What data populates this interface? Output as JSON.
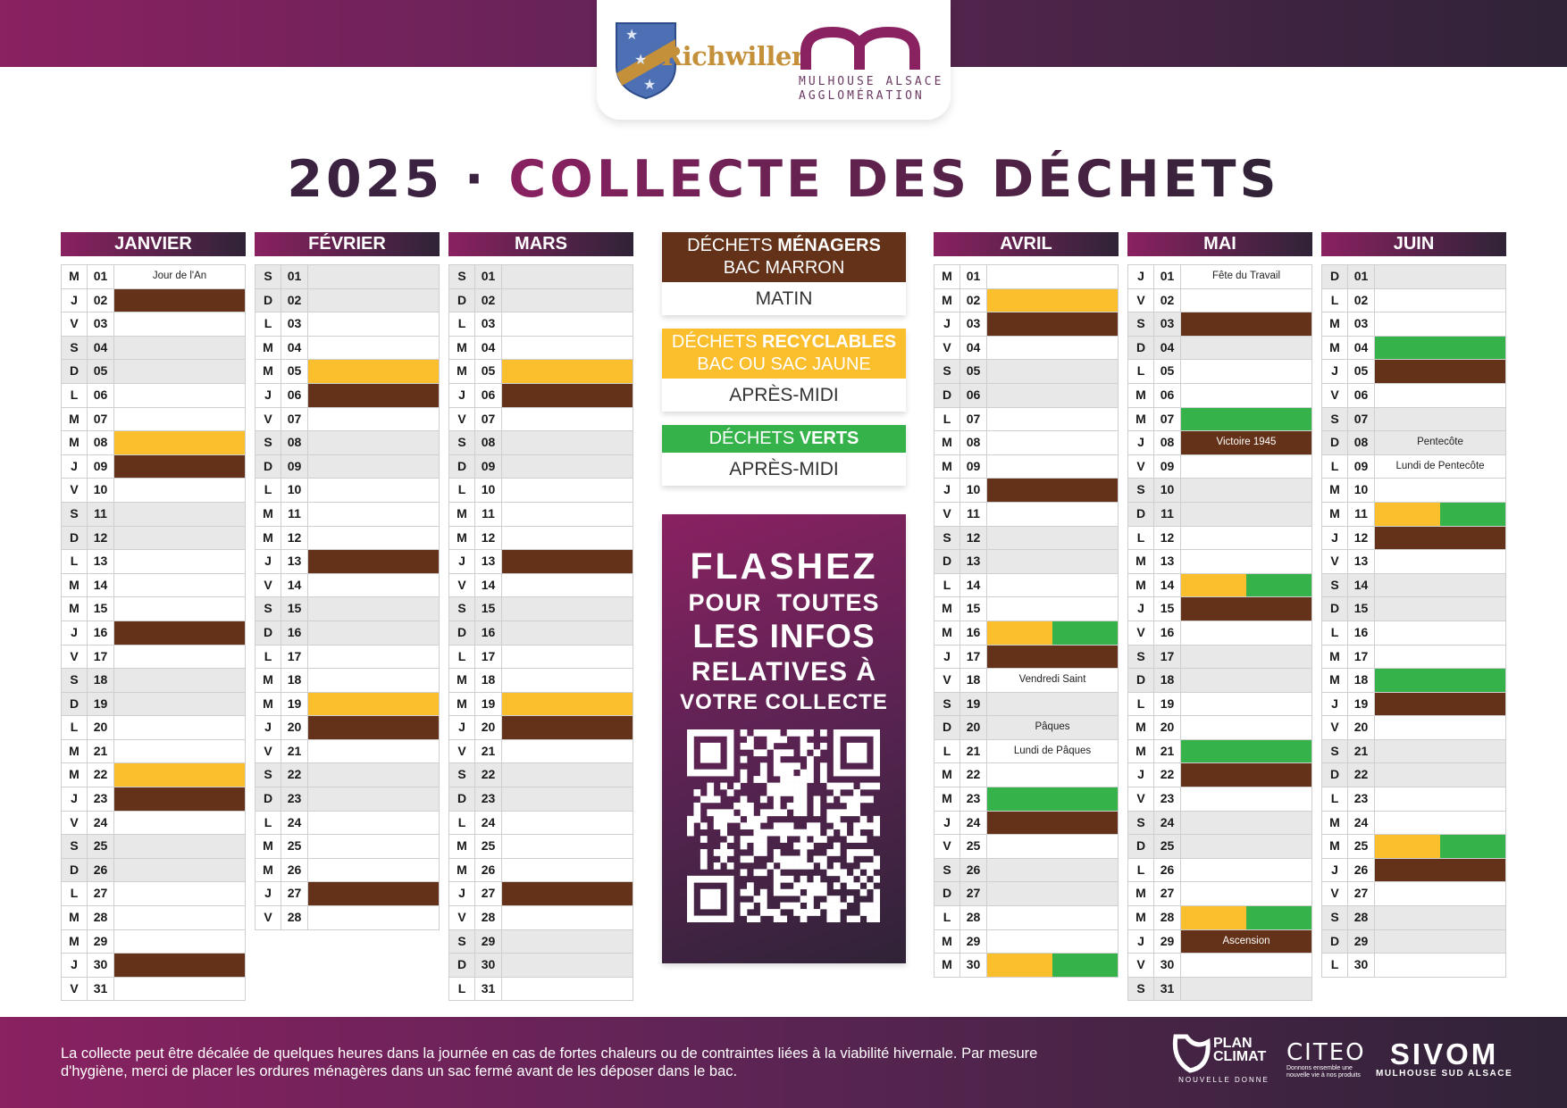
{
  "header": {
    "logo_name": "Richwiller",
    "partner_lines": "MULHOUSE ALSACE\nAGGLOMÉRATION",
    "title_year": "2025",
    "title_sep": "·",
    "title_rest": "COLLECTE DES DÉCHETS"
  },
  "colors": {
    "menagers": "#633218",
    "recyclables": "#fbbe2d",
    "verts": "#35b34a",
    "brand_start": "#8a2161",
    "brand_end": "#2f2337"
  },
  "months": [
    {
      "name": "JANVIER",
      "days": [
        {
          "l": "M",
          "n": "01",
          "note": "Jour de l'An"
        },
        {
          "l": "J",
          "n": "02",
          "c": "b"
        },
        {
          "l": "V",
          "n": "03"
        },
        {
          "l": "S",
          "n": "04"
        },
        {
          "l": "D",
          "n": "05"
        },
        {
          "l": "L",
          "n": "06"
        },
        {
          "l": "M",
          "n": "07"
        },
        {
          "l": "M",
          "n": "08",
          "c": "y"
        },
        {
          "l": "J",
          "n": "09",
          "c": "b"
        },
        {
          "l": "V",
          "n": "10"
        },
        {
          "l": "S",
          "n": "11"
        },
        {
          "l": "D",
          "n": "12"
        },
        {
          "l": "L",
          "n": "13"
        },
        {
          "l": "M",
          "n": "14"
        },
        {
          "l": "M",
          "n": "15"
        },
        {
          "l": "J",
          "n": "16",
          "c": "b"
        },
        {
          "l": "V",
          "n": "17"
        },
        {
          "l": "S",
          "n": "18"
        },
        {
          "l": "D",
          "n": "19"
        },
        {
          "l": "L",
          "n": "20"
        },
        {
          "l": "M",
          "n": "21"
        },
        {
          "l": "M",
          "n": "22",
          "c": "y"
        },
        {
          "l": "J",
          "n": "23",
          "c": "b"
        },
        {
          "l": "V",
          "n": "24"
        },
        {
          "l": "S",
          "n": "25"
        },
        {
          "l": "D",
          "n": "26"
        },
        {
          "l": "L",
          "n": "27"
        },
        {
          "l": "M",
          "n": "28"
        },
        {
          "l": "M",
          "n": "29"
        },
        {
          "l": "J",
          "n": "30",
          "c": "b"
        },
        {
          "l": "V",
          "n": "31"
        }
      ]
    },
    {
      "name": "FÉVRIER",
      "days": [
        {
          "l": "S",
          "n": "01"
        },
        {
          "l": "D",
          "n": "02"
        },
        {
          "l": "L",
          "n": "03"
        },
        {
          "l": "M",
          "n": "04"
        },
        {
          "l": "M",
          "n": "05",
          "c": "y"
        },
        {
          "l": "J",
          "n": "06",
          "c": "b"
        },
        {
          "l": "V",
          "n": "07"
        },
        {
          "l": "S",
          "n": "08"
        },
        {
          "l": "D",
          "n": "09"
        },
        {
          "l": "L",
          "n": "10"
        },
        {
          "l": "M",
          "n": "11"
        },
        {
          "l": "M",
          "n": "12"
        },
        {
          "l": "J",
          "n": "13",
          "c": "b"
        },
        {
          "l": "V",
          "n": "14"
        },
        {
          "l": "S",
          "n": "15"
        },
        {
          "l": "D",
          "n": "16"
        },
        {
          "l": "L",
          "n": "17"
        },
        {
          "l": "M",
          "n": "18"
        },
        {
          "l": "M",
          "n": "19",
          "c": "y"
        },
        {
          "l": "J",
          "n": "20",
          "c": "b"
        },
        {
          "l": "V",
          "n": "21"
        },
        {
          "l": "S",
          "n": "22"
        },
        {
          "l": "D",
          "n": "23"
        },
        {
          "l": "L",
          "n": "24"
        },
        {
          "l": "M",
          "n": "25"
        },
        {
          "l": "M",
          "n": "26"
        },
        {
          "l": "J",
          "n": "27",
          "c": "b"
        },
        {
          "l": "V",
          "n": "28"
        }
      ]
    },
    {
      "name": "MARS",
      "days": [
        {
          "l": "S",
          "n": "01"
        },
        {
          "l": "D",
          "n": "02"
        },
        {
          "l": "L",
          "n": "03"
        },
        {
          "l": "M",
          "n": "04"
        },
        {
          "l": "M",
          "n": "05",
          "c": "y"
        },
        {
          "l": "J",
          "n": "06",
          "c": "b"
        },
        {
          "l": "V",
          "n": "07"
        },
        {
          "l": "S",
          "n": "08"
        },
        {
          "l": "D",
          "n": "09"
        },
        {
          "l": "L",
          "n": "10"
        },
        {
          "l": "M",
          "n": "11"
        },
        {
          "l": "M",
          "n": "12"
        },
        {
          "l": "J",
          "n": "13",
          "c": "b"
        },
        {
          "l": "V",
          "n": "14"
        },
        {
          "l": "S",
          "n": "15"
        },
        {
          "l": "D",
          "n": "16"
        },
        {
          "l": "L",
          "n": "17"
        },
        {
          "l": "M",
          "n": "18"
        },
        {
          "l": "M",
          "n": "19",
          "c": "y"
        },
        {
          "l": "J",
          "n": "20",
          "c": "b"
        },
        {
          "l": "V",
          "n": "21"
        },
        {
          "l": "S",
          "n": "22"
        },
        {
          "l": "D",
          "n": "23"
        },
        {
          "l": "L",
          "n": "24"
        },
        {
          "l": "M",
          "n": "25"
        },
        {
          "l": "M",
          "n": "26"
        },
        {
          "l": "J",
          "n": "27",
          "c": "b"
        },
        {
          "l": "V",
          "n": "28"
        },
        {
          "l": "S",
          "n": "29"
        },
        {
          "l": "D",
          "n": "30"
        },
        {
          "l": "L",
          "n": "31"
        }
      ]
    },
    {
      "name": "AVRIL",
      "days": [
        {
          "l": "M",
          "n": "01"
        },
        {
          "l": "M",
          "n": "02",
          "c": "y"
        },
        {
          "l": "J",
          "n": "03",
          "c": "b"
        },
        {
          "l": "V",
          "n": "04"
        },
        {
          "l": "S",
          "n": "05"
        },
        {
          "l": "D",
          "n": "06"
        },
        {
          "l": "L",
          "n": "07"
        },
        {
          "l": "M",
          "n": "08"
        },
        {
          "l": "M",
          "n": "09"
        },
        {
          "l": "J",
          "n": "10",
          "c": "b"
        },
        {
          "l": "V",
          "n": "11"
        },
        {
          "l": "S",
          "n": "12"
        },
        {
          "l": "D",
          "n": "13"
        },
        {
          "l": "L",
          "n": "14"
        },
        {
          "l": "M",
          "n": "15"
        },
        {
          "l": "M",
          "n": "16",
          "c": "yg"
        },
        {
          "l": "J",
          "n": "17",
          "c": "b"
        },
        {
          "l": "V",
          "n": "18",
          "note": "Vendredi Saint"
        },
        {
          "l": "S",
          "n": "19"
        },
        {
          "l": "D",
          "n": "20",
          "note": "Pâques"
        },
        {
          "l": "L",
          "n": "21",
          "note": "Lundi de Pâques"
        },
        {
          "l": "M",
          "n": "22"
        },
        {
          "l": "M",
          "n": "23",
          "c": "g"
        },
        {
          "l": "J",
          "n": "24",
          "c": "b"
        },
        {
          "l": "V",
          "n": "25"
        },
        {
          "l": "S",
          "n": "26"
        },
        {
          "l": "D",
          "n": "27"
        },
        {
          "l": "L",
          "n": "28"
        },
        {
          "l": "M",
          "n": "29"
        },
        {
          "l": "M",
          "n": "30",
          "c": "yg"
        }
      ]
    },
    {
      "name": "MAI",
      "days": [
        {
          "l": "J",
          "n": "01",
          "note": "Fête du Travail"
        },
        {
          "l": "V",
          "n": "02"
        },
        {
          "l": "S",
          "n": "03",
          "c": "b"
        },
        {
          "l": "D",
          "n": "04"
        },
        {
          "l": "L",
          "n": "05"
        },
        {
          "l": "M",
          "n": "06"
        },
        {
          "l": "M",
          "n": "07",
          "c": "g"
        },
        {
          "l": "J",
          "n": "08",
          "c": "b",
          "note": "Victoire 1945"
        },
        {
          "l": "V",
          "n": "09"
        },
        {
          "l": "S",
          "n": "10"
        },
        {
          "l": "D",
          "n": "11"
        },
        {
          "l": "L",
          "n": "12"
        },
        {
          "l": "M",
          "n": "13"
        },
        {
          "l": "M",
          "n": "14",
          "c": "yg"
        },
        {
          "l": "J",
          "n": "15",
          "c": "b"
        },
        {
          "l": "V",
          "n": "16"
        },
        {
          "l": "S",
          "n": "17"
        },
        {
          "l": "D",
          "n": "18"
        },
        {
          "l": "L",
          "n": "19"
        },
        {
          "l": "M",
          "n": "20"
        },
        {
          "l": "M",
          "n": "21",
          "c": "g"
        },
        {
          "l": "J",
          "n": "22",
          "c": "b"
        },
        {
          "l": "V",
          "n": "23"
        },
        {
          "l": "S",
          "n": "24"
        },
        {
          "l": "D",
          "n": "25"
        },
        {
          "l": "L",
          "n": "26"
        },
        {
          "l": "M",
          "n": "27"
        },
        {
          "l": "M",
          "n": "28",
          "c": "yg"
        },
        {
          "l": "J",
          "n": "29",
          "c": "b",
          "note": "Ascension"
        },
        {
          "l": "V",
          "n": "30"
        },
        {
          "l": "S",
          "n": "31"
        }
      ]
    },
    {
      "name": "JUIN",
      "days": [
        {
          "l": "D",
          "n": "01"
        },
        {
          "l": "L",
          "n": "02"
        },
        {
          "l": "M",
          "n": "03"
        },
        {
          "l": "M",
          "n": "04",
          "c": "g"
        },
        {
          "l": "J",
          "n": "05",
          "c": "b"
        },
        {
          "l": "V",
          "n": "06"
        },
        {
          "l": "S",
          "n": "07"
        },
        {
          "l": "D",
          "n": "08",
          "note": "Pentecôte"
        },
        {
          "l": "L",
          "n": "09",
          "note": "Lundi de Pentecôte"
        },
        {
          "l": "M",
          "n": "10"
        },
        {
          "l": "M",
          "n": "11",
          "c": "yg"
        },
        {
          "l": "J",
          "n": "12",
          "c": "b"
        },
        {
          "l": "V",
          "n": "13"
        },
        {
          "l": "S",
          "n": "14"
        },
        {
          "l": "D",
          "n": "15"
        },
        {
          "l": "L",
          "n": "16"
        },
        {
          "l": "M",
          "n": "17"
        },
        {
          "l": "M",
          "n": "18",
          "c": "g"
        },
        {
          "l": "J",
          "n": "19",
          "c": "b"
        },
        {
          "l": "V",
          "n": "20"
        },
        {
          "l": "S",
          "n": "21"
        },
        {
          "l": "D",
          "n": "22"
        },
        {
          "l": "L",
          "n": "23"
        },
        {
          "l": "M",
          "n": "24"
        },
        {
          "l": "M",
          "n": "25",
          "c": "yg"
        },
        {
          "l": "J",
          "n": "26",
          "c": "b"
        },
        {
          "l": "V",
          "n": "27"
        },
        {
          "l": "S",
          "n": "28"
        },
        {
          "l": "D",
          "n": "29"
        },
        {
          "l": "L",
          "n": "30"
        }
      ]
    }
  ],
  "legend": {
    "menagers": {
      "prefix": "DÉCHETS ",
      "bold": "MÉNAGERS",
      "line2": "BAC MARRON",
      "time": "MATIN"
    },
    "recyclables": {
      "prefix": "DÉCHETS ",
      "bold": "RECYCLABLES",
      "line2": "BAC OU SAC JAUNE",
      "time": "APRÈS-MIDI"
    },
    "verts": {
      "prefix": "DÉCHETS ",
      "bold": "VERTS",
      "time": "APRÈS-MIDI"
    }
  },
  "flash": {
    "line1": "FLASHEZ",
    "line2": "POUR  TOUTES",
    "line3": "LES INFOS",
    "line4": "RELATIVES À",
    "line5": "VOTRE COLLECTE"
  },
  "footer": {
    "note": "La collecte peut être décalée de quelques heures dans la journée en cas de fortes chaleurs ou de contraintes liées à la viabilité hivernale. Par mesure d'hygiène, merci de placer les ordures ménagères dans un sac fermé avant de les déposer dans le bac.",
    "plan_climat": "PLAN\nCLIMAT",
    "plan_climat_sub": "NOUVELLE DONNE",
    "citeo": "CITEO",
    "citeo_sub": "Donnons ensemble une nouvelle vie à nos produits",
    "sivom": "SIVOM",
    "sivom_sub": "MULHOUSE SUD ALSACE"
  }
}
